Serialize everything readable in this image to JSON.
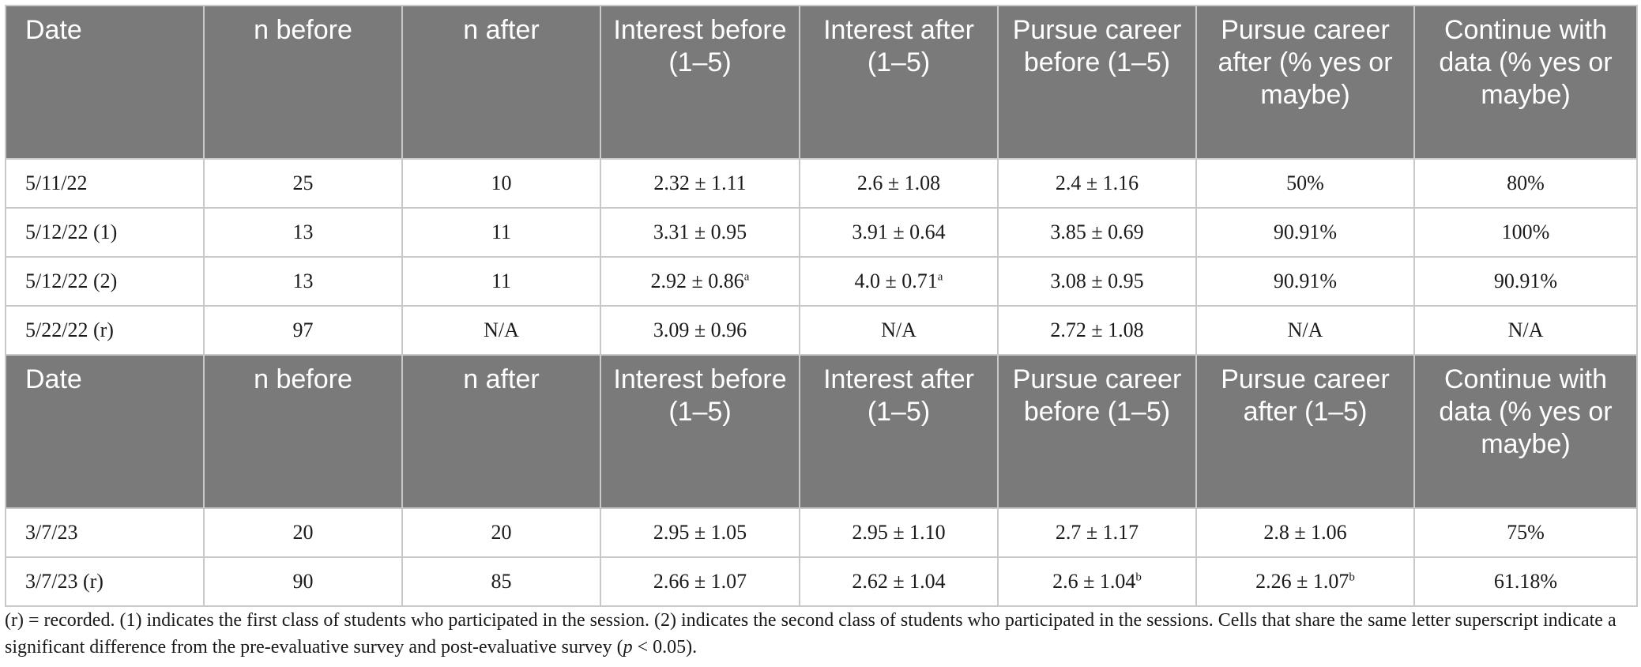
{
  "table": {
    "section1": {
      "headers": [
        "Date",
        "n before",
        "n after",
        "Interest before (1–5)",
        "Interest after (1–5)",
        "Pursue career before (1–5)",
        "Pursue career after (% yes or maybe)",
        "Continue with data (% yes or maybe)"
      ],
      "rows": [
        [
          {
            "v": "5/11/22"
          },
          {
            "v": "25"
          },
          {
            "v": "10"
          },
          {
            "v": "2.32 ± 1.11"
          },
          {
            "v": "2.6 ± 1.08"
          },
          {
            "v": "2.4 ± 1.16"
          },
          {
            "v": "50%"
          },
          {
            "v": "80%"
          }
        ],
        [
          {
            "v": "5/12/22 (1)"
          },
          {
            "v": "13"
          },
          {
            "v": "11"
          },
          {
            "v": "3.31 ± 0.95"
          },
          {
            "v": "3.91 ± 0.64"
          },
          {
            "v": "3.85 ± 0.69"
          },
          {
            "v": "90.91%"
          },
          {
            "v": "100%"
          }
        ],
        [
          {
            "v": "5/12/22 (2)"
          },
          {
            "v": "13"
          },
          {
            "v": "11"
          },
          {
            "v": "2.92 ± 0.86",
            "s": "a"
          },
          {
            "v": "4.0 ± 0.71",
            "s": "a"
          },
          {
            "v": "3.08 ± 0.95"
          },
          {
            "v": "90.91%"
          },
          {
            "v": "90.91%"
          }
        ],
        [
          {
            "v": "5/22/22 (r)"
          },
          {
            "v": "97"
          },
          {
            "v": "N/A"
          },
          {
            "v": "3.09 ± 0.96"
          },
          {
            "v": "N/A"
          },
          {
            "v": "2.72 ± 1.08"
          },
          {
            "v": "N/A"
          },
          {
            "v": "N/A"
          }
        ]
      ]
    },
    "section2": {
      "headers": [
        "Date",
        "n before",
        "n after",
        "Interest before (1–5)",
        "Interest after (1–5)",
        "Pursue career before (1–5)",
        "Pursue career after (1–5)",
        "Continue with data (% yes or maybe)"
      ],
      "rows": [
        [
          {
            "v": "3/7/23"
          },
          {
            "v": "20"
          },
          {
            "v": "20"
          },
          {
            "v": "2.95 ± 1.05"
          },
          {
            "v": "2.95 ± 1.10"
          },
          {
            "v": "2.7 ± 1.17"
          },
          {
            "v": "2.8 ± 1.06"
          },
          {
            "v": "75%"
          }
        ],
        [
          {
            "v": "3/7/23 (r)"
          },
          {
            "v": "90"
          },
          {
            "v": "85"
          },
          {
            "v": "2.66 ± 1.07"
          },
          {
            "v": "2.62 ± 1.04"
          },
          {
            "v": "2.6 ± 1.04",
            "s": "b"
          },
          {
            "v": "2.26 ± 1.07",
            "s": "b"
          },
          {
            "v": "61.18%"
          }
        ]
      ]
    }
  },
  "footnote": {
    "part1": "(r) = recorded. (1) indicates the first class of students who participated in the session. (2) indicates the second class of students who participated in the sessions. Cells that share the same letter superscript indicate a significant difference from the pre-evaluative survey and post-evaluative survey (",
    "p_symbol": "p",
    "part2": " < 0.05)."
  }
}
